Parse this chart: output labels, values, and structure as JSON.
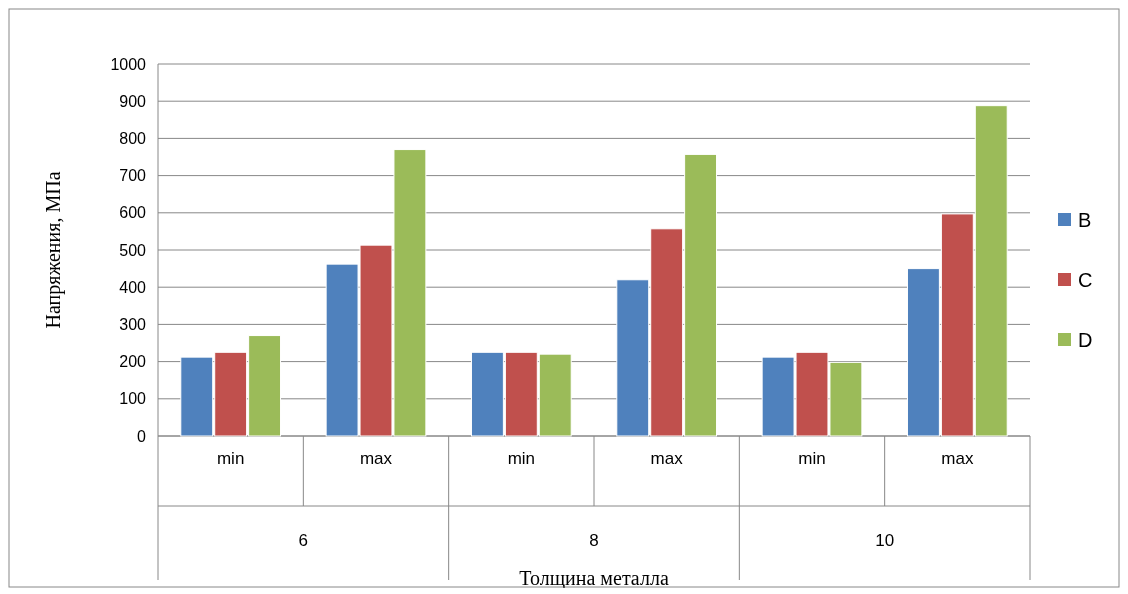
{
  "chart_data": {
    "type": "bar",
    "xlabel": "Толщина металла",
    "ylabel": "Напряжения, МПа",
    "categories": [
      "min",
      "max",
      "min",
      "max",
      "min",
      "max"
    ],
    "annotations": [
      "6",
      "8",
      "10"
    ],
    "series": [
      {
        "name": "B",
        "color": "#4f81bd",
        "values": [
          212,
          462,
          225,
          420,
          212,
          450
        ]
      },
      {
        "name": "C",
        "color": "#c0504d",
        "values": [
          225,
          513,
          225,
          557,
          225,
          597
        ]
      },
      {
        "name": "D",
        "color": "#9bbb59",
        "values": [
          270,
          770,
          220,
          757,
          198,
          888
        ]
      }
    ],
    "ylim": [
      0,
      1000
    ],
    "yticks": [
      0,
      100,
      200,
      300,
      400,
      500,
      600,
      700,
      800,
      900,
      1000
    ],
    "grid": "y",
    "legend": "right"
  }
}
